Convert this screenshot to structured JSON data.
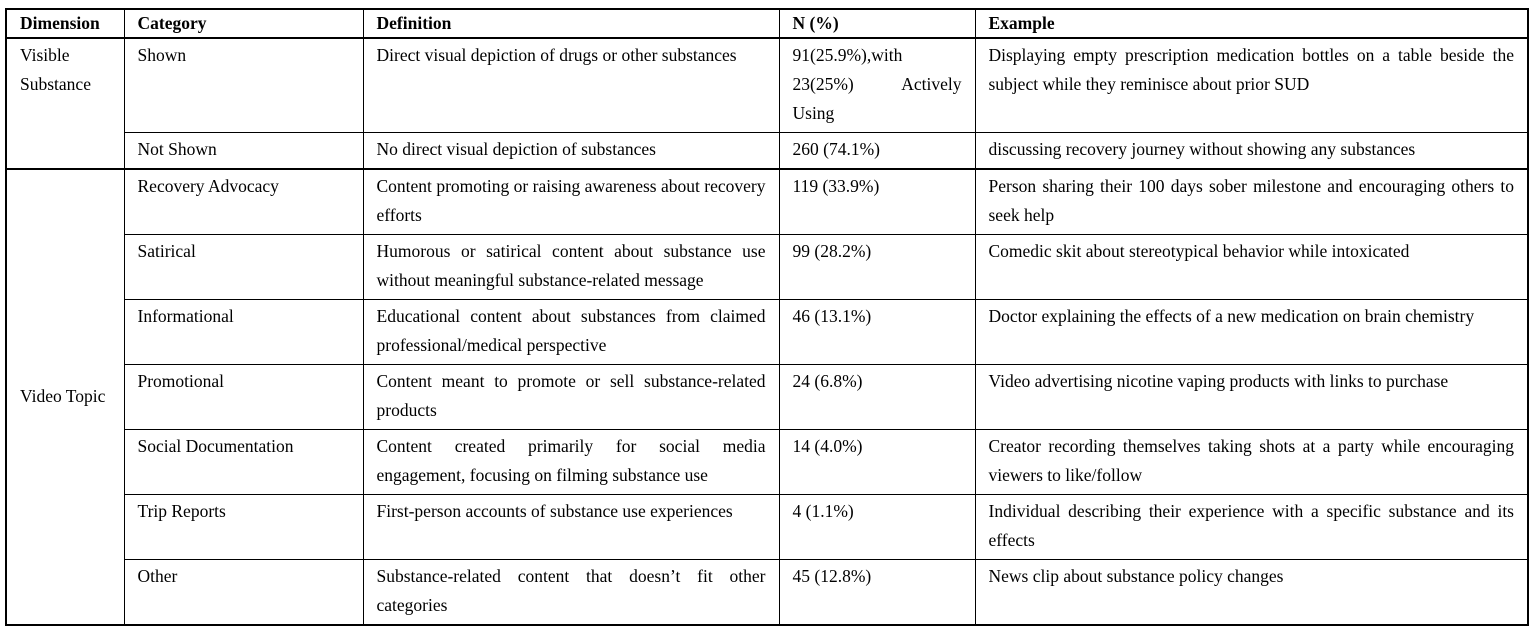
{
  "accent_colors": {
    "text": "#000000",
    "background": "#ffffff",
    "border": "#000000"
  },
  "table": {
    "columns": {
      "dimension": "Dimension",
      "category": "Category",
      "definition": "Definition",
      "n_pct": "N (%)",
      "example": "Example"
    },
    "groups": [
      {
        "dimension": "Visible Substance",
        "rows": [
          {
            "category": "Shown",
            "definition": "Direct visual depiction of drugs or other substances",
            "n": "91(25.9%),with 23(25%) Actively Using",
            "example": "Displaying empty prescription medication bottles on a table beside the subject while they reminisce about prior SUD"
          },
          {
            "category": "Not Shown",
            "definition": "No direct visual depiction of substances",
            "n": "260 (74.1%)",
            "example": "discussing recovery journey without showing any substances"
          }
        ]
      },
      {
        "dimension": "Video Topic",
        "rows": [
          {
            "category": "Recovery Advocacy",
            "definition": "Content promoting or raising awareness about recovery efforts",
            "n": "119 (33.9%)",
            "example": "Person sharing their 100 days sober milestone and encouraging others to seek help"
          },
          {
            "category": "Satirical",
            "definition": "Humorous or satirical content about substance use without meaningful substance-related message",
            "n": "99 (28.2%)",
            "example": "Comedic skit about stereotypical behavior while intoxicated"
          },
          {
            "category": "Informational",
            "definition": "Educational content about substances from claimed professional/medical perspective",
            "n": "46 (13.1%)",
            "example": "Doctor explaining the effects of a new medication on brain chemistry"
          },
          {
            "category": "Promotional",
            "definition": "Content meant to promote or sell substance-related products",
            "n": "24 (6.8%)",
            "example": "Video advertising nicotine vaping products with links to purchase"
          },
          {
            "category": "Social Documentation",
            "definition": "Content created primarily for social media engagement, focusing on filming substance use",
            "n": "14 (4.0%)",
            "example": "Creator recording themselves taking shots at a party while encouraging viewers to like/follow"
          },
          {
            "category": "Trip Reports",
            "definition": "First-person accounts of substance use experiences",
            "n": "4 (1.1%)",
            "example": "Individual describing their experience with a specific substance and its effects"
          },
          {
            "category": "Other",
            "definition": "Substance-related content that doesn’t fit other categories",
            "n": "45 (12.8%)",
            "example": "News clip about substance policy changes"
          }
        ]
      }
    ]
  }
}
